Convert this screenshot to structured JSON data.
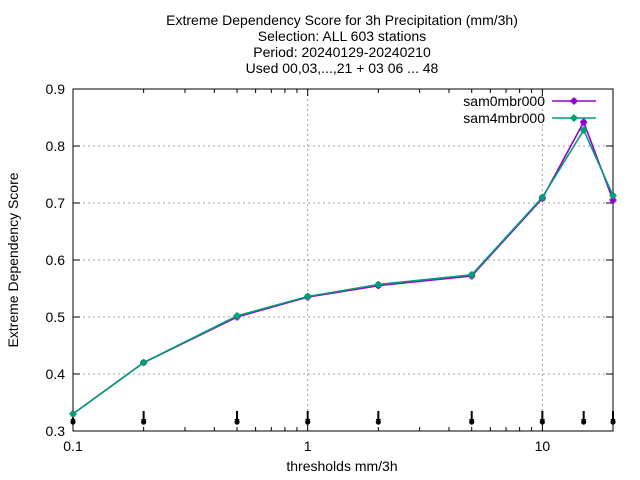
{
  "chart_data": {
    "type": "line",
    "title_lines": [
      "Extreme Dependency Score  for 3h Precipitation (mm/3h)",
      "Selection: ALL    603 stations",
      "Period: 20240129-20240210",
      "Used 00,03,...,21 + 03 06 ... 48"
    ],
    "xlabel": "thresholds mm/3h",
    "ylabel": "Extreme Dependency Score",
    "xscale": "log",
    "xlim": [
      0.1,
      20
    ],
    "ylim": [
      0.3,
      0.9
    ],
    "xticks": [
      0.1,
      1,
      10
    ],
    "xtick_labels": [
      "0.1",
      "1",
      "10"
    ],
    "yticks": [
      0.3,
      0.4,
      0.5,
      0.6,
      0.7,
      0.8,
      0.9
    ],
    "ytick_labels": [
      "0.3",
      "0.4",
      "0.5",
      "0.6",
      "0.7",
      "0.8",
      "0.9"
    ],
    "grid": true,
    "legend_position": "top-right",
    "x": [
      0.1,
      0.2,
      0.5,
      1,
      2,
      5,
      10,
      15,
      20
    ],
    "series": [
      {
        "name": "sam0mbr000",
        "color": "#9400d3",
        "values": [
          0.33,
          0.42,
          0.5,
          0.535,
          0.555,
          0.572,
          0.708,
          0.842,
          0.705
        ]
      },
      {
        "name": "sam4mbr000",
        "color": "#009e73",
        "values": [
          0.33,
          0.42,
          0.502,
          0.536,
          0.557,
          0.574,
          0.71,
          0.828,
          0.713
        ]
      }
    ],
    "sample_marker_x": [
      0.1,
      0.2,
      0.5,
      1,
      2,
      5,
      10,
      15,
      20
    ]
  }
}
